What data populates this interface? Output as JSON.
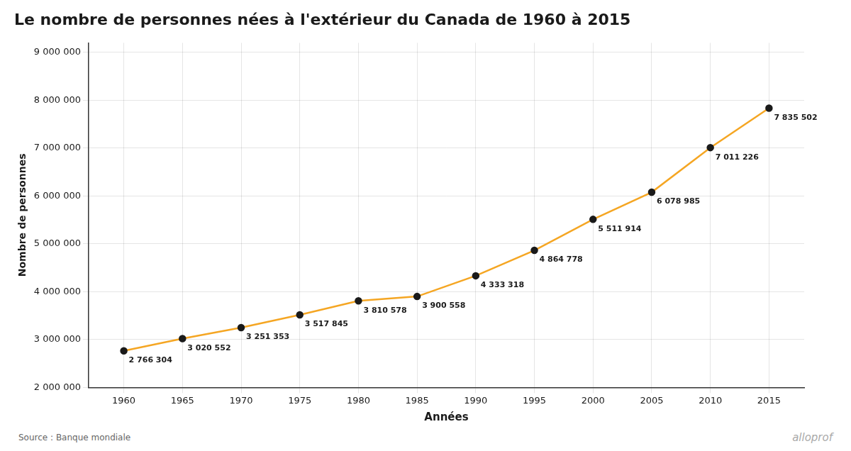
{
  "chart_data": {
    "type": "line",
    "title": "Le nombre de personnes nées à l'extérieur du Canada de 1960 à 2015",
    "x_label": "Années",
    "y_label": "Nombre de personnes",
    "annotations": [
      "Source : Banque mondiale",
      "alloprof"
    ],
    "x": [
      1960,
      1965,
      1970,
      1975,
      1980,
      1985,
      1990,
      1995,
      2000,
      2005,
      2010,
      2015
    ],
    "values": [
      2766304,
      3020552,
      3251353,
      3517845,
      3810578,
      3900558,
      4333318,
      4864778,
      5511914,
      6078985,
      7011226,
      7835502
    ],
    "value_labels": [
      "2 766 304",
      "3 020 552",
      "3 251 353",
      "3 517 845",
      "3 810 578",
      "3 900 558",
      "4 333 318",
      "4 864 778",
      "5 511 914",
      "6 078 985",
      "7 011 226",
      "7 835 502"
    ],
    "data_labels": true,
    "color": "#F5A623",
    "marker": "o",
    "xlim": [
      1957,
      2018
    ],
    "xticks": [
      1960,
      1965,
      1970,
      1975,
      1980,
      1985,
      1990,
      1995,
      2000,
      2005,
      2010,
      2015
    ],
    "ylim": [
      2000000,
      9200000
    ],
    "yticks": [
      {
        "value": 2000000,
        "label": "2 000 000"
      },
      {
        "value": 3000000,
        "label": "3 000 000"
      },
      {
        "value": 4000000,
        "label": "4 000 000"
      },
      {
        "value": 5000000,
        "label": "5 000 000"
      },
      {
        "value": 6000000,
        "label": "6 000 000"
      },
      {
        "value": 7000000,
        "label": "7 000 000"
      },
      {
        "value": 8000000,
        "label": "8 000 000"
      },
      {
        "value": 9000000,
        "label": "9 000 000"
      }
    ],
    "grid": true
  }
}
